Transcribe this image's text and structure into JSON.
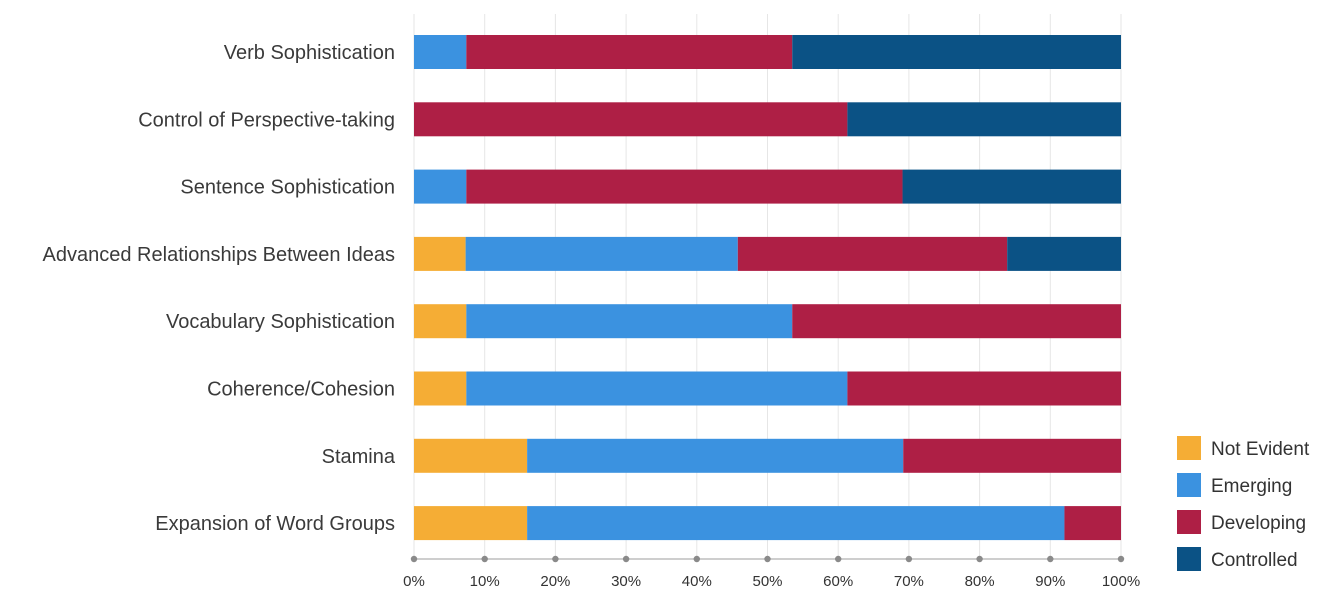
{
  "chart_data": {
    "type": "bar",
    "orientation": "horizontal",
    "stacked": true,
    "title": "",
    "xlabel": "",
    "ylabel": "",
    "xlim": [
      0,
      100
    ],
    "x_ticks": [
      "0%",
      "10%",
      "20%",
      "30%",
      "40%",
      "50%",
      "60%",
      "70%",
      "80%",
      "90%",
      "100%"
    ],
    "grid": true,
    "legend_position": "bottom-right",
    "categories": [
      "Verb Sophistication",
      "Control of Perspective-taking",
      "Sentence Sophistication",
      "Advanced Relationships Between Ideas",
      "Vocabulary Sophistication",
      "Coherence/Cohesion",
      "Stamina",
      "Expansion of Word Groups"
    ],
    "series": [
      {
        "name": "Not Evident",
        "color": "#F5AD35",
        "values": [
          0,
          0,
          0,
          7.3,
          7.4,
          7.4,
          16,
          16
        ]
      },
      {
        "name": "Emerging",
        "color": "#3B92E0",
        "values": [
          7.4,
          0,
          7.4,
          38.5,
          46.1,
          53.9,
          53.2,
          76
        ]
      },
      {
        "name": "Developing",
        "color": "#AE1F45",
        "values": [
          46.1,
          61.3,
          61.7,
          38.1,
          46.5,
          38.7,
          30.8,
          8
        ]
      },
      {
        "name": "Controlled",
        "color": "#0B5285",
        "values": [
          46.5,
          38.7,
          30.9,
          16.1,
          0,
          0,
          0,
          0
        ]
      }
    ]
  }
}
